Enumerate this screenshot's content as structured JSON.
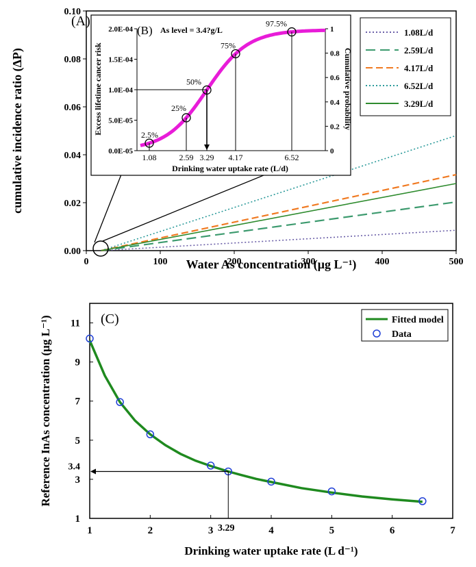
{
  "chart_data": [
    {
      "panel": "(A)",
      "type": "line",
      "xlabel": "Water As concentration (μg L⁻¹)",
      "ylabel": "cumulative incidence ratio (ΔP)",
      "xlim": [
        0,
        500
      ],
      "ylim": [
        0,
        0.1
      ],
      "x_ticks": [
        "0",
        "100",
        "200",
        "300",
        "400",
        "500"
      ],
      "y_ticks": [
        "0.00",
        "0.02",
        "0.04",
        "0.06",
        "0.08",
        "0.10"
      ],
      "legend_position": "top-right",
      "series": [
        {
          "name": "1.08L/d",
          "color": "#6b5fa8",
          "dash": "dot",
          "x": [
            20,
            500
          ],
          "y": [
            0.0,
            0.0085
          ]
        },
        {
          "name": "2.59L/d",
          "color": "#3c9a6e",
          "dash": "long-dash",
          "x": [
            20,
            500
          ],
          "y": [
            0.0,
            0.0203
          ]
        },
        {
          "name": "4.17L/d",
          "color": "#f07a22",
          "dash": "dash",
          "x": [
            20,
            500
          ],
          "y": [
            0.0,
            0.0317
          ]
        },
        {
          "name": "6.52L/d",
          "color": "#2b9a9a",
          "dash": "dot",
          "x": [
            20,
            500
          ],
          "y": [
            0.0,
            0.048
          ]
        },
        {
          "name": "3.29L/d",
          "color": "#2e8b2e",
          "dash": "solid",
          "x": [
            20,
            500
          ],
          "y": [
            0.0,
            0.028
          ]
        }
      ]
    },
    {
      "panel": "(B)",
      "type": "line",
      "annotation_title": "As level = 3.4?g/L",
      "xlabel": "Drinking water uptake rate (L/d)",
      "ylabel": "Excess lifetime cancer risk",
      "y2label": "Cumulative probability",
      "y_ticks": [
        "0.0E-05",
        "5.0E-05",
        "1.0E-04",
        "1.5E-04",
        "2.0E-04"
      ],
      "y2_ticks": [
        "0",
        "0.2",
        "0.4",
        "0.6",
        "0.8",
        "1"
      ],
      "x_tick_labels": [
        "1.08",
        "2.59",
        "3.29",
        "4.17",
        "6.52"
      ],
      "curve_color": "#e81cd8",
      "percentiles": [
        {
          "label": "2.5%",
          "x": 1.08,
          "p": 0.025
        },
        {
          "label": "25%",
          "x": 2.59,
          "p": 0.25
        },
        {
          "label": "50%",
          "x": 3.29,
          "p": 0.5
        },
        {
          "label": "75%",
          "x": 4.17,
          "p": 0.75
        },
        {
          "label": "97.5%",
          "x": 6.52,
          "p": 0.975
        }
      ]
    },
    {
      "panel": "(C)",
      "type": "scatter",
      "xlabel": "Drinking water uptake rate (L d⁻¹)",
      "ylabel": "Reference InAs concentration (μg L⁻¹)",
      "xlim": [
        1,
        7
      ],
      "ylim": [
        1,
        12
      ],
      "x_ticks": [
        "1",
        "2",
        "3",
        "4",
        "5",
        "6",
        "7"
      ],
      "y_ticks": [
        "1",
        "3",
        "5",
        "7",
        "9",
        "11"
      ],
      "legend_position": "top-right",
      "series": [
        {
          "name": "Fitted model",
          "type": "line",
          "color": "#1f8a1f",
          "x": [
            1.0,
            1.25,
            1.5,
            1.75,
            2.0,
            2.25,
            2.5,
            2.75,
            3.0,
            3.29,
            3.5,
            3.75,
            4.0,
            4.5,
            5.0,
            5.5,
            6.0,
            6.5
          ],
          "y": [
            10.1,
            8.3,
            6.95,
            6.0,
            5.3,
            4.75,
            4.3,
            3.95,
            3.68,
            3.4,
            3.22,
            3.02,
            2.86,
            2.55,
            2.32,
            2.12,
            1.97,
            1.85
          ]
        },
        {
          "name": "Data",
          "type": "scatter",
          "color": "#1f3fd6",
          "x": [
            1.0,
            1.5,
            2.0,
            3.0,
            3.29,
            4.0,
            5.0,
            6.5
          ],
          "y": [
            10.2,
            6.95,
            5.3,
            3.7,
            3.4,
            2.88,
            2.38,
            1.88
          ]
        }
      ],
      "annotations": [
        {
          "text": "3.4",
          "x": 1.0,
          "y": 3.4
        },
        {
          "text": "3.29",
          "x": 3.29,
          "y": 1.0
        }
      ]
    }
  ]
}
